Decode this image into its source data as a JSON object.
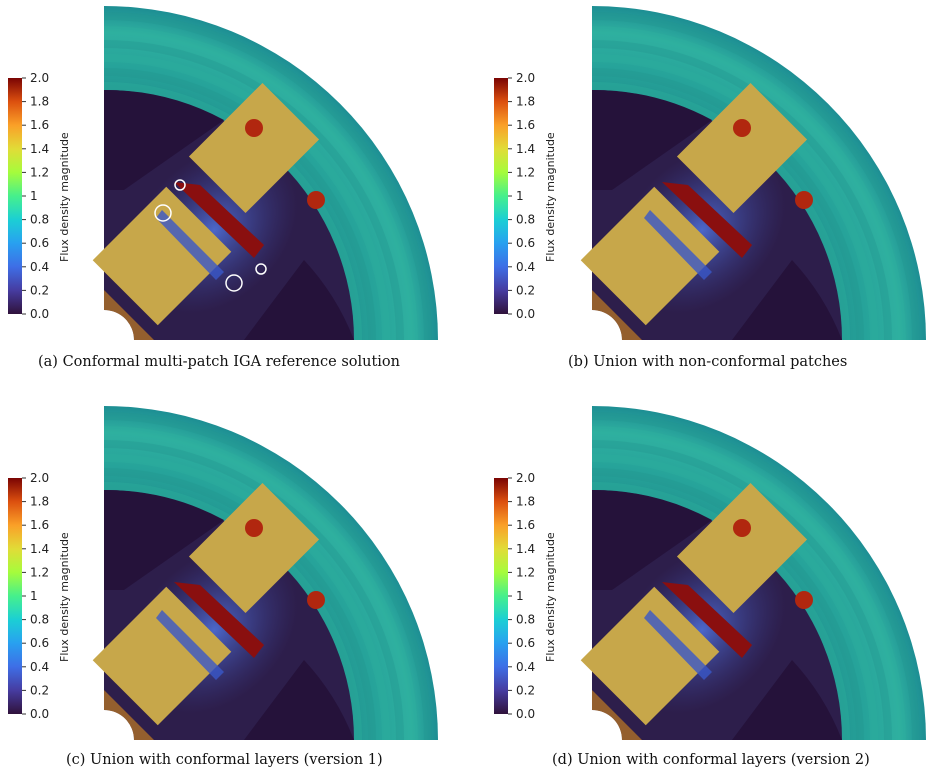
{
  "colorbar": {
    "title": "Flux density magnitude",
    "ticks": [
      "2.0",
      "1.8",
      "1.6",
      "1.4",
      "1.2",
      "1",
      "0.8",
      "0.6",
      "0.4",
      "0.2",
      "0.0"
    ],
    "range": [
      0.0,
      2.0
    ]
  },
  "panels": [
    {
      "caption": "(a) Conformal multi-patch IGA reference solution",
      "highlight_circles": 4,
      "variant": "reference"
    },
    {
      "caption": "(b) Union with non-conformal patches",
      "highlight_circles": 0,
      "variant": "non-conformal"
    },
    {
      "caption": "(c) Union with conformal layers (version 1)",
      "highlight_circles": 0,
      "variant": "layers-v1"
    },
    {
      "caption": "(d) Union with conformal layers (version 2)",
      "highlight_circles": 0,
      "variant": "layers-v2"
    }
  ],
  "colors": {
    "magnet": "#c7a74a",
    "rotor": "#2d1e4b",
    "rotor_dark": "#25123a",
    "stator": "#2aa197",
    "hot": "#8a0f0f"
  }
}
